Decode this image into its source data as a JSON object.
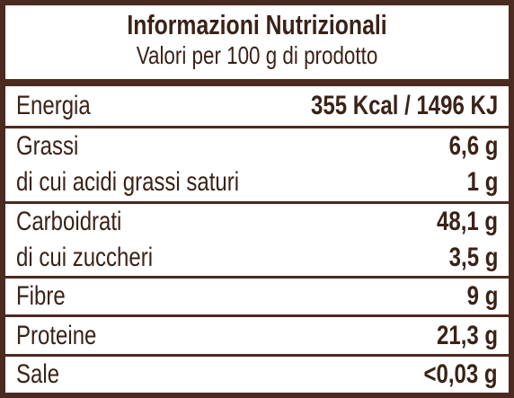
{
  "header": {
    "title": "Informazioni Nutrizionali",
    "subtitle": "Valori per 100 g di prodotto"
  },
  "table": {
    "rows": [
      [
        [
          "Energia",
          "355 Kcal / 1496 KJ"
        ]
      ],
      [
        [
          "Grassi",
          "6,6 g"
        ],
        [
          "di cui acidi grassi saturi",
          "1 g"
        ]
      ],
      [
        [
          "Carboidrati",
          "48,1 g"
        ],
        [
          "di cui zuccheri",
          "3,5 g"
        ]
      ],
      [
        [
          "Fibre",
          "9 g"
        ]
      ],
      [
        [
          "Proteine",
          "21,3 g"
        ]
      ],
      [
        [
          "Sale",
          "<0,03 g"
        ]
      ]
    ]
  }
}
